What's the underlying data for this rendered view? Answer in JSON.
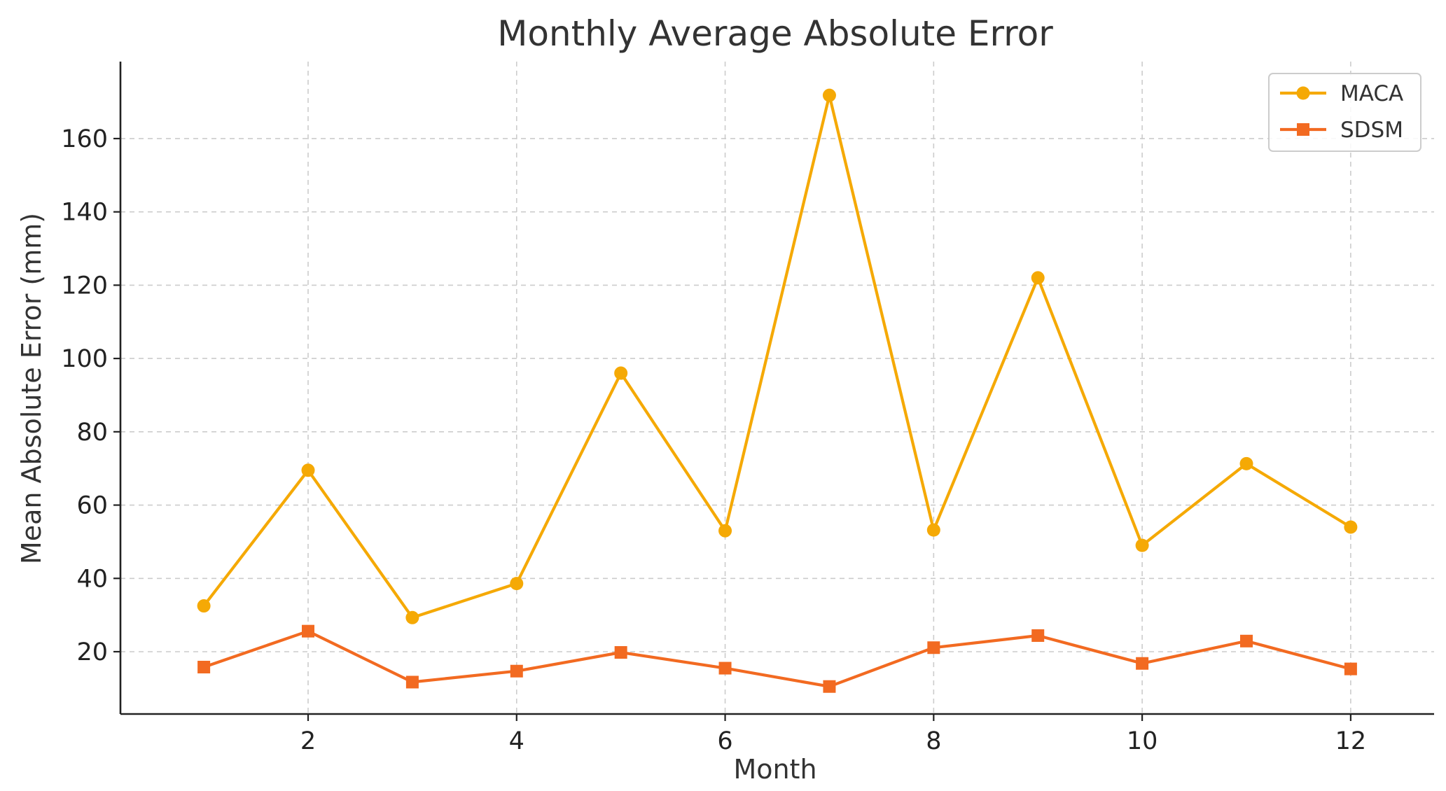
{
  "chart_data": {
    "type": "line",
    "title": "Monthly Average Absolute Error",
    "xlabel": "Month",
    "ylabel": "Mean Absolute Error (mm)",
    "x": [
      1,
      2,
      3,
      4,
      5,
      6,
      7,
      8,
      9,
      10,
      11,
      12
    ],
    "xlim": [
      0.2,
      12.8
    ],
    "ylim": [
      3,
      181
    ],
    "xticks": [
      2,
      4,
      6,
      8,
      10,
      12
    ],
    "yticks": [
      20,
      40,
      60,
      80,
      100,
      120,
      140,
      160
    ],
    "grid": true,
    "legend_position": "top-right",
    "series": [
      {
        "name": "MACA",
        "color": "#f5a905",
        "marker": "circle",
        "values": [
          32.5,
          69.5,
          29.3,
          38.6,
          96.0,
          53.0,
          171.8,
          53.2,
          122.0,
          49.0,
          71.3,
          54.0
        ]
      },
      {
        "name": "SDSM",
        "color": "#f26a21",
        "marker": "square",
        "values": [
          15.8,
          25.6,
          11.7,
          14.7,
          19.8,
          15.5,
          10.5,
          21.1,
          24.4,
          16.8,
          22.9,
          15.3
        ]
      }
    ]
  }
}
